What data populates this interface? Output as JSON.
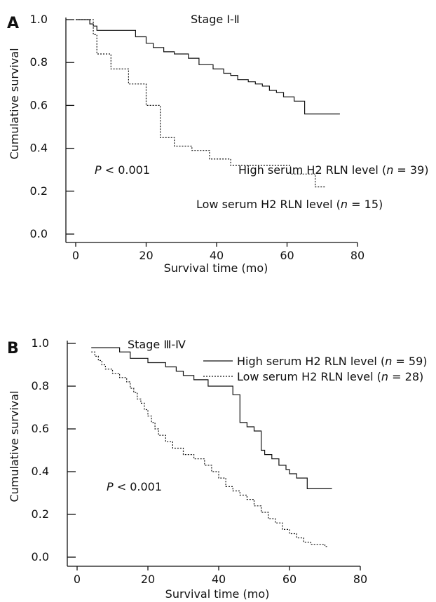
{
  "chart_data": [
    {
      "panel": "A",
      "type": "line",
      "title": "Stage Ⅰ-Ⅱ",
      "xlabel": "Survival time (mo)",
      "ylabel": "Cumulative survival",
      "xlim": [
        0,
        80
      ],
      "ylim": [
        0.0,
        1.0
      ],
      "xticks": [
        "0",
        "20",
        "40",
        "60",
        "80"
      ],
      "yticks": [
        "0.0",
        "0.2",
        "0.4",
        "0.6",
        "0.8",
        "1.0"
      ],
      "annotation": {
        "label": "P",
        "text": " < 0.001"
      },
      "series": [
        {
          "name": "High serum H2 RLN level (n = 39)",
          "label_pre": "High serum H2 RLN level (",
          "label_n": "n",
          "label_post": " = 39)",
          "style": "solid",
          "x": [
            0,
            4,
            5,
            6,
            17,
            20,
            22,
            25,
            28,
            32,
            35,
            39,
            42,
            44,
            46,
            49,
            51,
            53,
            55,
            57,
            59,
            62,
            65,
            75
          ],
          "y": [
            1.0,
            0.98,
            0.97,
            0.95,
            0.92,
            0.89,
            0.87,
            0.85,
            0.84,
            0.82,
            0.79,
            0.77,
            0.75,
            0.74,
            0.72,
            0.71,
            0.7,
            0.69,
            0.67,
            0.66,
            0.64,
            0.62,
            0.56,
            0.56
          ]
        },
        {
          "name": "Low serum H2 RLN level (n = 15)",
          "label_pre": "Low serum H2 RLN level (",
          "label_n": "n",
          "label_post": " = 15)",
          "style": "dashed",
          "x": [
            0,
            5,
            6,
            10,
            15,
            20,
            24,
            28,
            33,
            38,
            44,
            61,
            68,
            71
          ],
          "y": [
            1.0,
            0.93,
            0.84,
            0.77,
            0.7,
            0.6,
            0.45,
            0.41,
            0.39,
            0.35,
            0.32,
            0.28,
            0.22,
            0.22
          ]
        }
      ]
    },
    {
      "panel": "B",
      "type": "line",
      "title": "Stage Ⅲ-Ⅳ",
      "xlabel": "Survival time (mo)",
      "ylabel": "Cumulative survival",
      "xlim": [
        0,
        80
      ],
      "ylim": [
        0.0,
        1.0
      ],
      "xticks": [
        "0",
        "20",
        "40",
        "60",
        "80"
      ],
      "yticks": [
        "0.0",
        "0.2",
        "0.4",
        "0.6",
        "0.8",
        "1.0"
      ],
      "annotation": {
        "label": "P",
        "text": " < 0.001"
      },
      "legend": "top-right",
      "series": [
        {
          "name": "High serum H2 RLN level (n = 59)",
          "label_pre": "High serum H2 RLN level (",
          "label_n": "n",
          "label_post": " = 59)",
          "style": "solid",
          "x": [
            4,
            12,
            15,
            20,
            25,
            28,
            30,
            33,
            37,
            40,
            44,
            46,
            47,
            48,
            49,
            50,
            52,
            53,
            55,
            57,
            59,
            60,
            62,
            65,
            72
          ],
          "y": [
            0.98,
            0.96,
            0.93,
            0.91,
            0.89,
            0.87,
            0.85,
            0.83,
            0.8,
            0.8,
            0.76,
            0.63,
            0.63,
            0.61,
            0.61,
            0.59,
            0.5,
            0.48,
            0.46,
            0.43,
            0.41,
            0.39,
            0.37,
            0.32,
            0.32
          ]
        },
        {
          "name": "Low serum H2 RLN level (n = 28)",
          "label_pre": "Low serum H2 RLN level (",
          "label_n": "n",
          "label_post": " = 28)",
          "style": "dashed",
          "x": [
            4,
            5,
            6,
            7,
            8,
            10,
            12,
            14,
            15,
            16,
            17,
            18,
            19,
            20,
            21,
            22,
            23,
            25,
            27,
            30,
            33,
            36,
            38,
            40,
            42,
            44,
            46,
            48,
            50,
            52,
            54,
            56,
            58,
            60,
            62,
            64,
            66,
            68,
            70,
            71
          ],
          "y": [
            0.96,
            0.94,
            0.92,
            0.9,
            0.88,
            0.86,
            0.84,
            0.82,
            0.79,
            0.77,
            0.74,
            0.72,
            0.69,
            0.66,
            0.63,
            0.6,
            0.57,
            0.54,
            0.51,
            0.48,
            0.46,
            0.43,
            0.4,
            0.37,
            0.33,
            0.31,
            0.29,
            0.27,
            0.24,
            0.21,
            0.18,
            0.16,
            0.13,
            0.11,
            0.09,
            0.07,
            0.06,
            0.06,
            0.05,
            0.05
          ]
        }
      ]
    }
  ]
}
